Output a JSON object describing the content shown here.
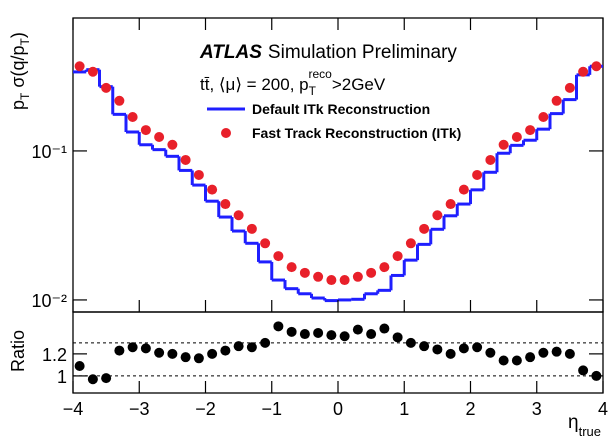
{
  "chart_data": [
    {
      "type": "line",
      "title_bold": "ATLAS",
      "title": "Simulation Preliminary",
      "annotation_parts": [
        "tt̄, ⟨μ⟩ = 200, p",
        "T",
        "reco",
        ">2GeV"
      ],
      "y_label_parts": [
        "p",
        "T",
        " σ(q/p",
        "T",
        ")"
      ],
      "xlim": [
        -4,
        4
      ],
      "ylim": [
        0.0083,
        0.78
      ],
      "log_y": true,
      "yticks": [
        {
          "value": 0.01,
          "label": "10⁻²"
        },
        {
          "value": 0.1,
          "label": "10⁻¹"
        }
      ],
      "series": [
        {
          "name": "Default ITk Reconstruction",
          "color": "#1f1fff",
          "style": "step",
          "bins": [
            -4,
            -3.8,
            -3.6,
            -3.4,
            -3.2,
            -3,
            -2.8,
            -2.6,
            -2.4,
            -2.2,
            -2,
            -1.8,
            -1.6,
            -1.4,
            -1.2,
            -1,
            -0.8,
            -0.6,
            -0.4,
            -0.2,
            0,
            0.2,
            0.4,
            0.6,
            0.8,
            1,
            1.2,
            1.4,
            1.6,
            1.8,
            2,
            2.2,
            2.4,
            2.6,
            2.8,
            3,
            3.2,
            3.4,
            3.6,
            3.8,
            4
          ],
          "values": [
            0.339,
            0.351,
            0.27,
            0.176,
            0.134,
            0.11,
            0.102,
            0.092,
            0.074,
            0.059,
            0.046,
            0.036,
            0.029,
            0.024,
            0.018,
            0.0136,
            0.0119,
            0.011,
            0.0103,
            0.0099,
            0.01,
            0.0101,
            0.011,
            0.0116,
            0.0146,
            0.0185,
            0.0236,
            0.0298,
            0.0367,
            0.044,
            0.0548,
            0.0719,
            0.0965,
            0.109,
            0.118,
            0.14,
            0.178,
            0.221,
            0.324,
            0.37
          ]
        },
        {
          "name": "Fast Track Reconstruction (ITk)",
          "color": "#e8202a",
          "style": "marker",
          "x": [
            -3.9,
            -3.7,
            -3.5,
            -3.3,
            -3.1,
            -2.9,
            -2.7,
            -2.5,
            -2.3,
            -2.1,
            -1.9,
            -1.7,
            -1.5,
            -1.3,
            -1.1,
            -0.9,
            -0.7,
            -0.5,
            -0.3,
            -0.1,
            0.1,
            0.3,
            0.5,
            0.7,
            0.9,
            1.1,
            1.3,
            1.5,
            1.7,
            1.9,
            2.1,
            2.3,
            2.5,
            2.7,
            2.9,
            3.1,
            3.3,
            3.5,
            3.7,
            3.9
          ],
          "values": [
            0.37,
            0.34,
            0.265,
            0.217,
            0.169,
            0.138,
            0.124,
            0.11,
            0.087,
            0.069,
            0.055,
            0.044,
            0.037,
            0.03,
            0.024,
            0.0197,
            0.0166,
            0.0152,
            0.0143,
            0.0136,
            0.0136,
            0.0143,
            0.0152,
            0.0166,
            0.0197,
            0.024,
            0.03,
            0.037,
            0.044,
            0.055,
            0.069,
            0.087,
            0.11,
            0.124,
            0.138,
            0.169,
            0.217,
            0.265,
            0.34,
            0.37
          ]
        }
      ]
    },
    {
      "type": "scatter",
      "y_label": "Ratio",
      "x_label_parts": [
        "η",
        "true"
      ],
      "xlim": [
        -4,
        4
      ],
      "ylim": [
        0.845,
        1.58
      ],
      "xticks": [
        {
          "value": -4,
          "label": "−4"
        },
        {
          "value": -3,
          "label": "−3"
        },
        {
          "value": -2,
          "label": "−2"
        },
        {
          "value": -1,
          "label": "−1"
        },
        0,
        1,
        2,
        3,
        4
      ],
      "yticks": [
        1,
        1.2
      ],
      "ref_lines": [
        1,
        1.3
      ],
      "color": "#000000",
      "x": [
        -3.9,
        -3.7,
        -3.5,
        -3.3,
        -3.1,
        -2.9,
        -2.7,
        -2.5,
        -2.3,
        -2.1,
        -1.9,
        -1.7,
        -1.5,
        -1.3,
        -1.1,
        -0.9,
        -0.7,
        -0.5,
        -0.3,
        -0.1,
        0.1,
        0.3,
        0.5,
        0.7,
        0.9,
        1.1,
        1.3,
        1.5,
        1.7,
        1.9,
        2.1,
        2.3,
        2.5,
        2.7,
        2.9,
        3.1,
        3.3,
        3.5,
        3.7,
        3.9
      ],
      "values": [
        1.09,
        0.97,
        0.98,
        1.23,
        1.26,
        1.25,
        1.21,
        1.2,
        1.17,
        1.16,
        1.2,
        1.23,
        1.27,
        1.26,
        1.3,
        1.45,
        1.4,
        1.38,
        1.39,
        1.37,
        1.36,
        1.42,
        1.38,
        1.43,
        1.35,
        1.3,
        1.27,
        1.24,
        1.2,
        1.25,
        1.26,
        1.21,
        1.14,
        1.14,
        1.17,
        1.21,
        1.22,
        1.2,
        1.05,
        1.0
      ]
    }
  ]
}
